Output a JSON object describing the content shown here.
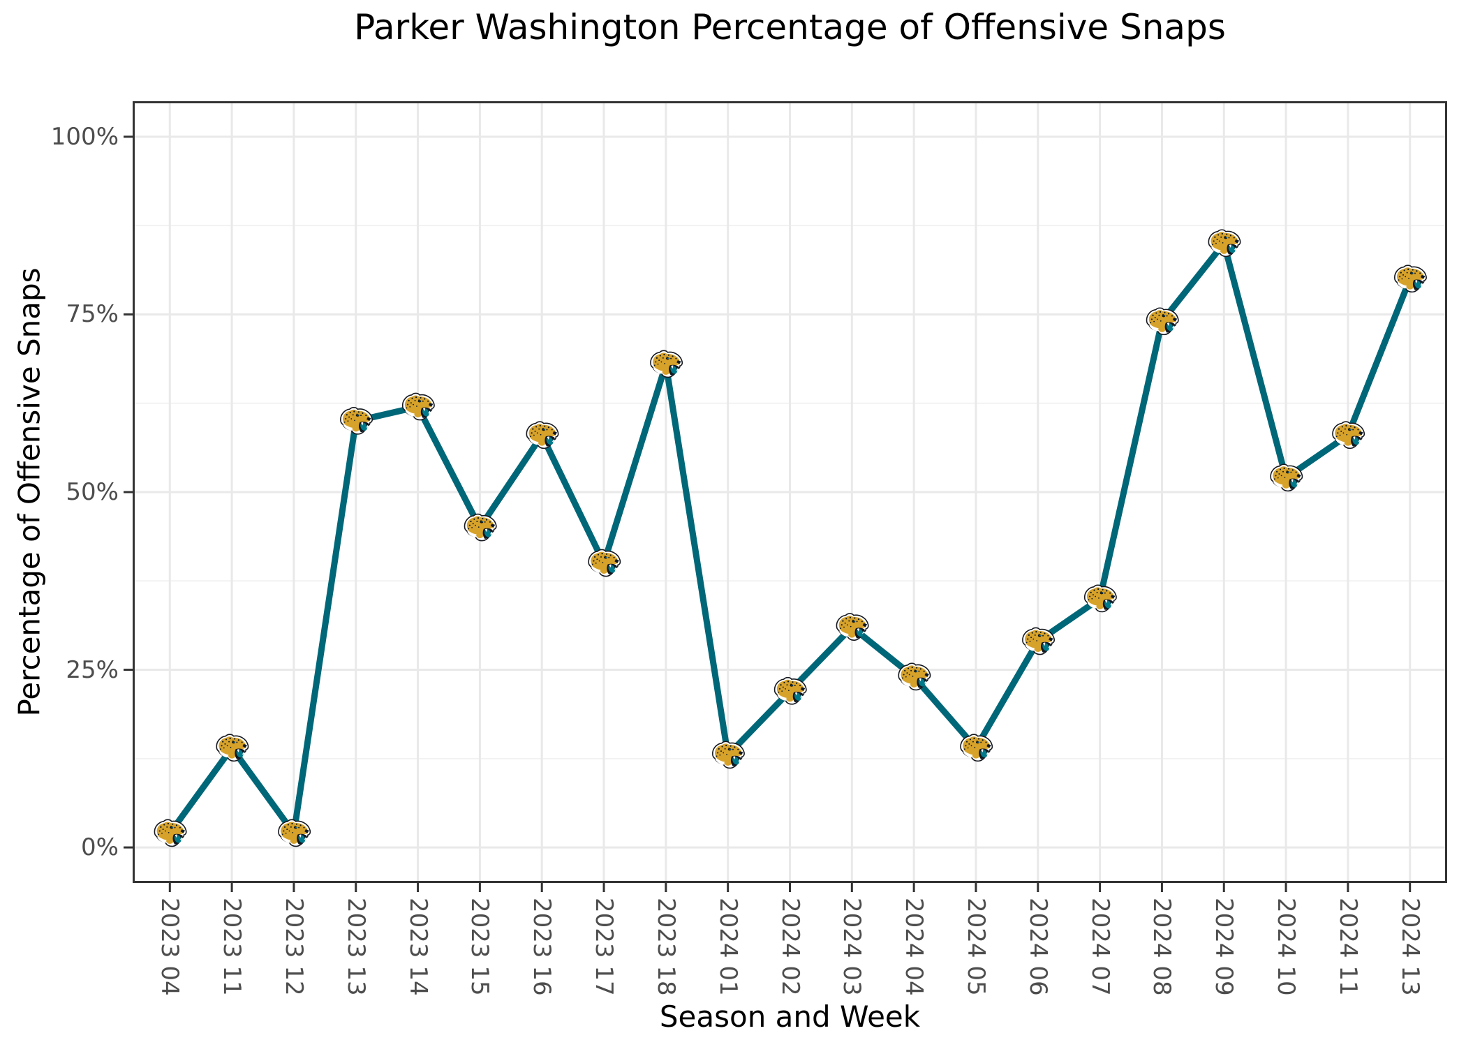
{
  "title": "Parker Washington Percentage of Offensive Snaps",
  "chart_data": {
    "type": "line",
    "title": "Parker Washington Percentage of Offensive Snaps",
    "xlabel": "Season and Week",
    "ylabel": "Percentage of Offensive Snaps",
    "x": [
      "2023 04",
      "2023 11",
      "2023 12",
      "2023 13",
      "2023 14",
      "2023 15",
      "2023 16",
      "2023 17",
      "2023 18",
      "2024 01",
      "2024 02",
      "2024 03",
      "2024 04",
      "2024 05",
      "2024 06",
      "2024 07",
      "2024 08",
      "2024 09",
      "2024 10",
      "2024 11",
      "2024 13"
    ],
    "series": [
      {
        "name": "offensive-snap-percentage",
        "marker": "jacksonville-jaguars-logo",
        "values": [
          2,
          14,
          2,
          60,
          62,
          45,
          58,
          40,
          68,
          13,
          22,
          31,
          24,
          14,
          29,
          35,
          74,
          85,
          52,
          58,
          80
        ]
      }
    ],
    "ylim": [
      0,
      100
    ],
    "y_tick_labels": [
      "0%",
      "25%",
      "50%",
      "75%",
      "100%"
    ],
    "y_tick_values": [
      0,
      25,
      50,
      75,
      100
    ],
    "y_minor_values": [
      12.5,
      37.5,
      62.5,
      87.5
    ],
    "grid": "on",
    "legend": "none",
    "colors": {
      "line": "#006778",
      "logo_gold": "#D7A22A",
      "logo_black": "#101820",
      "logo_teal": "#007A8A",
      "grid_major": "#e9e9e9",
      "grid_minor": "#f2f2f2",
      "panel_border": "#333333",
      "tick_mark": "#333333",
      "axis_text": "#4d4d4d",
      "title_text": "#000000",
      "background": "#ffffff"
    }
  }
}
